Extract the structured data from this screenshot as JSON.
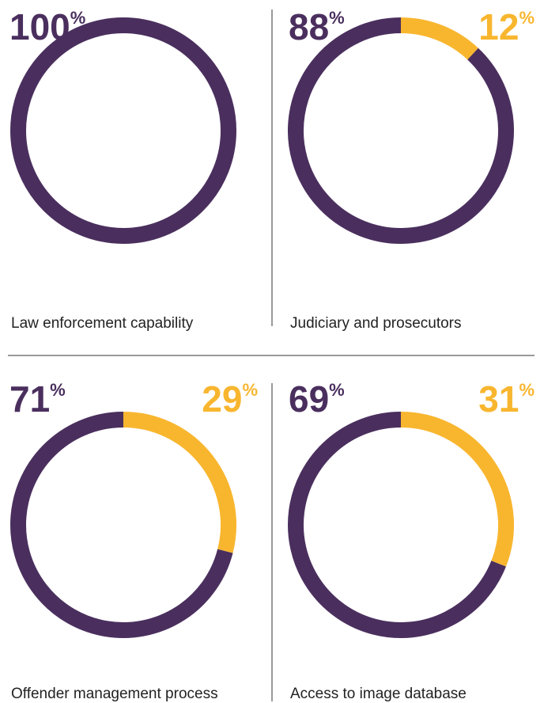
{
  "chart_data": [
    {
      "type": "pie",
      "title": "Law enforcement capability",
      "values": [
        100
      ],
      "value_labels": [
        "100%"
      ],
      "colors": [
        "#4a2f5e"
      ]
    },
    {
      "type": "pie",
      "title": "Judiciary and prosecutors",
      "values": [
        88,
        12
      ],
      "value_labels": [
        "88%",
        "12%"
      ],
      "colors": [
        "#4a2f5e",
        "#f8b62f"
      ]
    },
    {
      "type": "pie",
      "title": "Offender management process",
      "values": [
        71,
        29
      ],
      "value_labels": [
        "71%",
        "29%"
      ],
      "colors": [
        "#4a2f5e",
        "#f8b62f"
      ]
    },
    {
      "type": "pie",
      "title": "Access to image database",
      "values": [
        69,
        31
      ],
      "value_labels": [
        "69%",
        "31%"
      ],
      "colors": [
        "#4a2f5e",
        "#f8b62f"
      ]
    }
  ]
}
